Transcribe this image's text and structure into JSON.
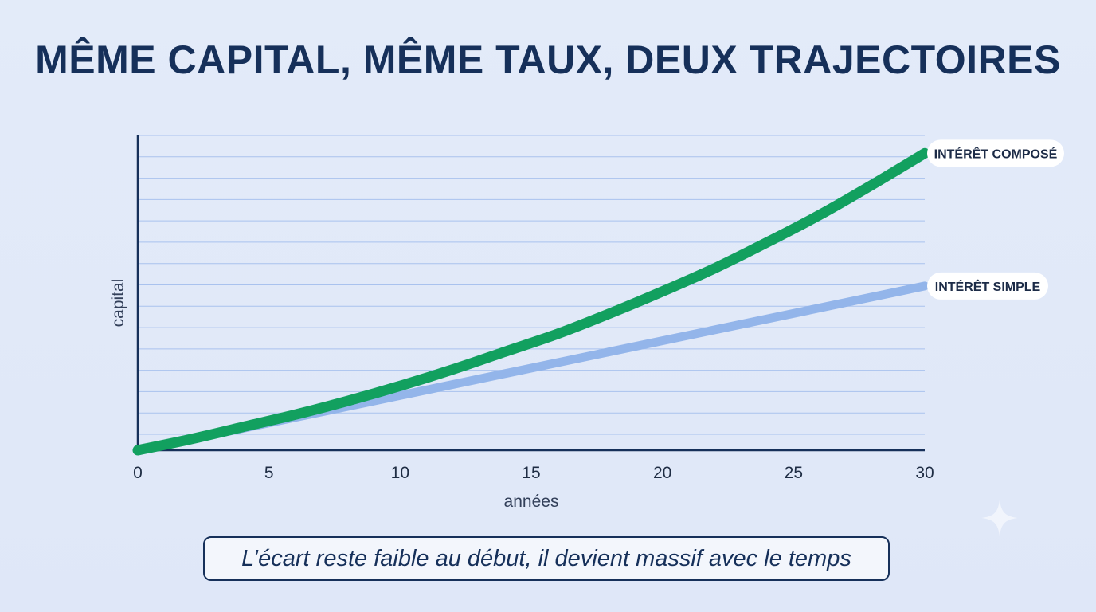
{
  "title": "MÊME CAPITAL, MÊME TAUX, DEUX TRAJECTOIRES",
  "caption": "L’écart reste faible au début, il devient massif avec le temps",
  "colors": {
    "compound": "#12a05f",
    "simple": "#93b5ea",
    "axis": "#16305a",
    "grid": "#a9c2ee",
    "title": "#16305a"
  },
  "chart_data": {
    "type": "line",
    "xlabel": "années",
    "ylabel": "capital",
    "x_ticks": [
      0,
      5,
      10,
      15,
      20,
      25,
      30
    ],
    "xlim": [
      0,
      30
    ],
    "ylim": [
      1,
      3.3
    ],
    "grid": true,
    "series": [
      {
        "name": "INTÉRÊT COMPOSÉ",
        "color": "#12a05f",
        "x": [
          0,
          2,
          4,
          6,
          8,
          10,
          12,
          14,
          16,
          18,
          20,
          22,
          24,
          26,
          28,
          30
        ],
        "values": [
          1.0,
          1.08,
          1.17,
          1.26,
          1.36,
          1.47,
          1.59,
          1.72,
          1.85,
          2.0,
          2.16,
          2.33,
          2.52,
          2.72,
          2.94,
          3.17
        ]
      },
      {
        "name": "INTÉRÊT SIMPLE",
        "color": "#93b5ea",
        "x": [
          0,
          30
        ],
        "values": [
          1.0,
          2.2
        ]
      }
    ]
  }
}
